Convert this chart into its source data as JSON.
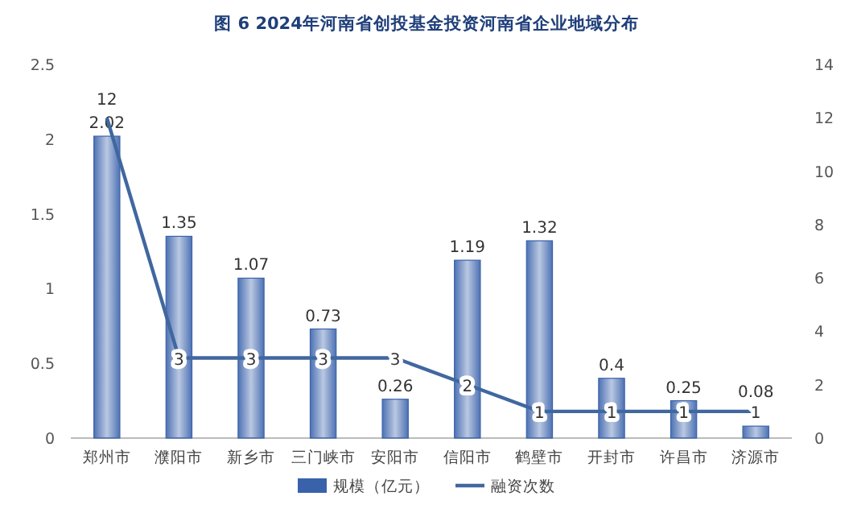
{
  "chart_data": {
    "type": "bar",
    "title": "图 6  2024年河南省创投基金投资河南省企业地域分布",
    "categories": [
      "郑州市",
      "濮阳市",
      "新乡市",
      "三门峡市",
      "安阳市",
      "信阳市",
      "鹤壁市",
      "开封市",
      "许昌市",
      "济源市"
    ],
    "series": [
      {
        "name": "规模（亿元）",
        "color": "#3a62ab",
        "values": [
          2.02,
          1.35,
          1.07,
          0.73,
          0.26,
          1.19,
          1.32,
          0.4,
          0.25,
          0.08
        ]
      },
      {
        "name": "融资次数",
        "type": "line",
        "axis": "y2",
        "color": "#41679f",
        "values": [
          12,
          3,
          3,
          3,
          3,
          2,
          1,
          1,
          1,
          1
        ]
      }
    ],
    "ylim": [
      0,
      2.5
    ],
    "yticks": [
      0,
      0.5,
      1,
      1.5,
      2,
      2.5
    ],
    "y2lim": [
      0,
      14
    ],
    "y2ticks": [
      0,
      2,
      4,
      6,
      8,
      10,
      12,
      14
    ],
    "data_labels": true,
    "legend": "bottom"
  }
}
